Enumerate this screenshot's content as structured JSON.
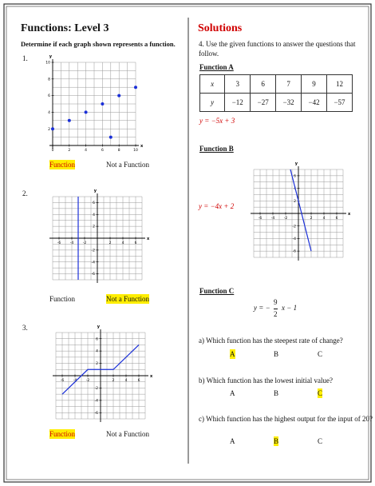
{
  "header": {
    "title": "Functions: Level 3",
    "solutions": "Solutions"
  },
  "left": {
    "instructions": "Determine if each graph shown represents a function.",
    "graphs": [
      {
        "number": "1.",
        "x_label": "x",
        "y_label": "y",
        "xlim": [
          0,
          10
        ],
        "ylim": [
          0,
          10
        ],
        "xticks": [
          0,
          2,
          4,
          6,
          8,
          10
        ],
        "yticks": [
          2,
          4,
          6,
          8,
          10
        ],
        "points": {
          "x": [
            0,
            2,
            4,
            6,
            7,
            8,
            10
          ],
          "y": [
            2,
            3,
            4,
            5,
            1,
            6,
            7
          ]
        },
        "options": [
          {
            "text": "Function",
            "selected": true,
            "color": "#d00000"
          },
          {
            "text": "Not a Function",
            "selected": false,
            "color": "#111111"
          }
        ]
      },
      {
        "number": "2.",
        "x_label": "x",
        "y_label": "y",
        "xlim": [
          -7,
          7
        ],
        "ylim": [
          -7,
          7
        ],
        "xticks": [
          -6,
          -4,
          -2,
          2,
          4,
          6
        ],
        "yticks": [
          6,
          4,
          2,
          -2,
          -4,
          -6
        ],
        "line": {
          "x": [
            -3,
            -3
          ],
          "y": [
            7,
            -7
          ]
        },
        "options": [
          {
            "text": "Function",
            "selected": false,
            "color": "#111111"
          },
          {
            "text": "Not a Function",
            "selected": true,
            "color": "#111111"
          }
        ]
      },
      {
        "number": "3.",
        "x_label": "x",
        "y_label": "y",
        "xlim": [
          -7,
          7
        ],
        "ylim": [
          -7,
          7
        ],
        "xticks": [
          -6,
          -4,
          -2,
          2,
          4,
          6
        ],
        "yticks": [
          6,
          4,
          2,
          -2,
          -4,
          -6
        ],
        "line": {
          "x": [
            -6,
            -2,
            2,
            6
          ],
          "y": [
            -3,
            1,
            1,
            5
          ]
        },
        "options": [
          {
            "text": "Function",
            "selected": true,
            "color": "#d00000"
          },
          {
            "text": "Not a Function",
            "selected": false,
            "color": "#111111"
          }
        ]
      }
    ]
  },
  "right": {
    "prompt": "4. Use the given functions to answer the questions that follow.",
    "function_a": {
      "title": "Function A",
      "table": {
        "rows": [
          [
            "x",
            "3",
            "6",
            "7",
            "9",
            "12"
          ],
          [
            "y",
            "−12",
            "−27",
            "−32",
            "−42",
            "−57"
          ]
        ]
      },
      "equation": "y = −5x + 3"
    },
    "function_b": {
      "title": "Function B",
      "equation": "y = −4x + 2",
      "graph": {
        "x_label": "x",
        "y_label": "y",
        "xlim": [
          -7,
          7
        ],
        "ylim": [
          -7,
          7
        ],
        "xticks": [
          -6,
          -4,
          -2,
          2,
          4,
          6
        ],
        "yticks": [
          6,
          4,
          2,
          -2,
          -4,
          -6
        ],
        "line": {
          "x": [
            -1.25,
            2
          ],
          "y": [
            7,
            -6
          ]
        }
      }
    },
    "function_c": {
      "title": "Function C",
      "equation": {
        "lhs": "y = −",
        "numerator": "9",
        "denominator": "2",
        "rhs": "x − 1"
      }
    },
    "questions": [
      {
        "text": "a) Which function has the steepest rate of change?",
        "options": [
          {
            "text": "A",
            "selected": true
          },
          {
            "text": "B",
            "selected": false
          },
          {
            "text": "C",
            "selected": false
          }
        ]
      },
      {
        "text": "b) Which function has the lowest initial value?",
        "options": [
          {
            "text": "A",
            "selected": false
          },
          {
            "text": "B",
            "selected": false
          },
          {
            "text": "C",
            "selected": true
          }
        ]
      },
      {
        "text": "c) Which function has the highest output for the input of 20?",
        "options": [
          {
            "text": "A",
            "selected": false
          },
          {
            "text": "B",
            "selected": true
          },
          {
            "text": "C",
            "selected": false
          }
        ]
      }
    ]
  }
}
